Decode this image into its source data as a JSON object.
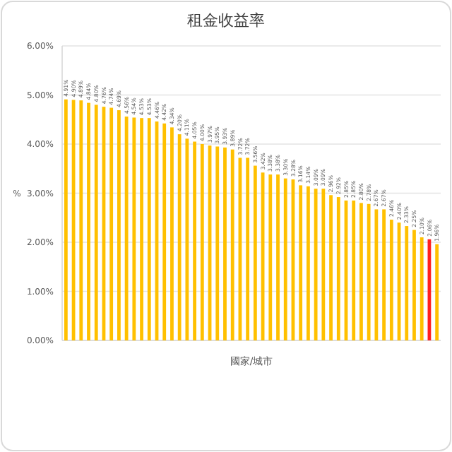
{
  "chart_data": {
    "type": "bar",
    "title": "租金收益率",
    "xlabel": "國家/城市",
    "ylabel": "%",
    "categories": [
      null,
      null,
      null,
      null,
      null,
      null,
      null,
      null,
      null,
      null,
      null,
      null,
      null,
      null,
      null,
      null,
      null,
      null,
      null,
      null,
      null,
      null,
      null,
      null,
      null,
      null,
      null,
      null,
      null,
      null,
      null,
      null,
      null,
      null,
      null,
      null,
      null,
      null,
      null,
      null,
      null,
      null,
      null,
      null,
      null,
      null,
      null,
      null,
      null,
      null
    ],
    "values": [
      4.91,
      4.9,
      4.89,
      4.84,
      4.8,
      4.76,
      4.74,
      4.69,
      4.56,
      4.54,
      4.53,
      4.53,
      4.46,
      4.42,
      4.34,
      4.2,
      4.11,
      4.05,
      4.0,
      3.97,
      3.95,
      3.93,
      3.89,
      3.72,
      3.72,
      3.56,
      3.42,
      3.38,
      3.38,
      3.3,
      3.28,
      3.16,
      3.14,
      3.09,
      3.09,
      2.96,
      2.92,
      2.85,
      2.85,
      2.8,
      2.78,
      2.67,
      2.67,
      2.46,
      2.4,
      2.33,
      2.25,
      2.1,
      2.06,
      1.96
    ],
    "value_labels": [
      "4.91%",
      "4.90%",
      "4.89%",
      "4.84%",
      "4.80%",
      "4.76%",
      "4.74%",
      "4.69%",
      "4.56%",
      "4.54%",
      "4.53%",
      "4.53%",
      "4.46%",
      "4.42%",
      "4.34%",
      "4.20%",
      "4.11%",
      "4.05%",
      "4.00%",
      "3.97%",
      "3.95%",
      "3.93%",
      "3.89%",
      "3.72%",
      "3.72%",
      "3.56%",
      "3.42%",
      "3.38%",
      "3.38%",
      "3.30%",
      "3.28%",
      "3.16%",
      "3.14%",
      "3.09%",
      "3.09%",
      "2.96%",
      "2.92%",
      "2.85%",
      "2.85%",
      "2.80%",
      "2.78%",
      "2.67%",
      "2.67%",
      "2.46%",
      "2.40%",
      "2.33%",
      "2.25%",
      "2.10%",
      "2.06%",
      "1.96%"
    ],
    "colors": [
      "#ffc000",
      "#ffc000",
      "#ffc000",
      "#ffc000",
      "#ffc000",
      "#ffc000",
      "#ffc000",
      "#ffc000",
      "#ffc000",
      "#ffc000",
      "#ffc000",
      "#ffc000",
      "#ffc000",
      "#ffc000",
      "#ffc000",
      "#ffc000",
      "#ffc000",
      "#ffc000",
      "#ffc000",
      "#ffc000",
      "#ffc000",
      "#ffc000",
      "#ffc000",
      "#ffc000",
      "#ffc000",
      "#ffc000",
      "#ffc000",
      "#ffc000",
      "#ffc000",
      "#ffc000",
      "#ffc000",
      "#ffc000",
      "#ffc000",
      "#ffc000",
      "#ffc000",
      "#ffc000",
      "#ffc000",
      "#ffc000",
      "#ffc000",
      "#ffc000",
      "#ffc000",
      "#ffc000",
      "#ffc000",
      "#ffc000",
      "#ffc000",
      "#ffc000",
      "#ffc000",
      "#ffc000",
      "#ff2020",
      "#ffc000"
    ],
    "ylim": [
      0,
      6
    ],
    "yticks": [
      {
        "value": 0,
        "label": "0.00%"
      },
      {
        "value": 1,
        "label": "1.00%"
      },
      {
        "value": 2,
        "label": "2.00%"
      },
      {
        "value": 3,
        "label": "3.00%"
      },
      {
        "value": 4,
        "label": "4.00%"
      },
      {
        "value": 5,
        "label": "5.00%"
      },
      {
        "value": 6,
        "label": "6.00%"
      }
    ],
    "grid": "y"
  }
}
